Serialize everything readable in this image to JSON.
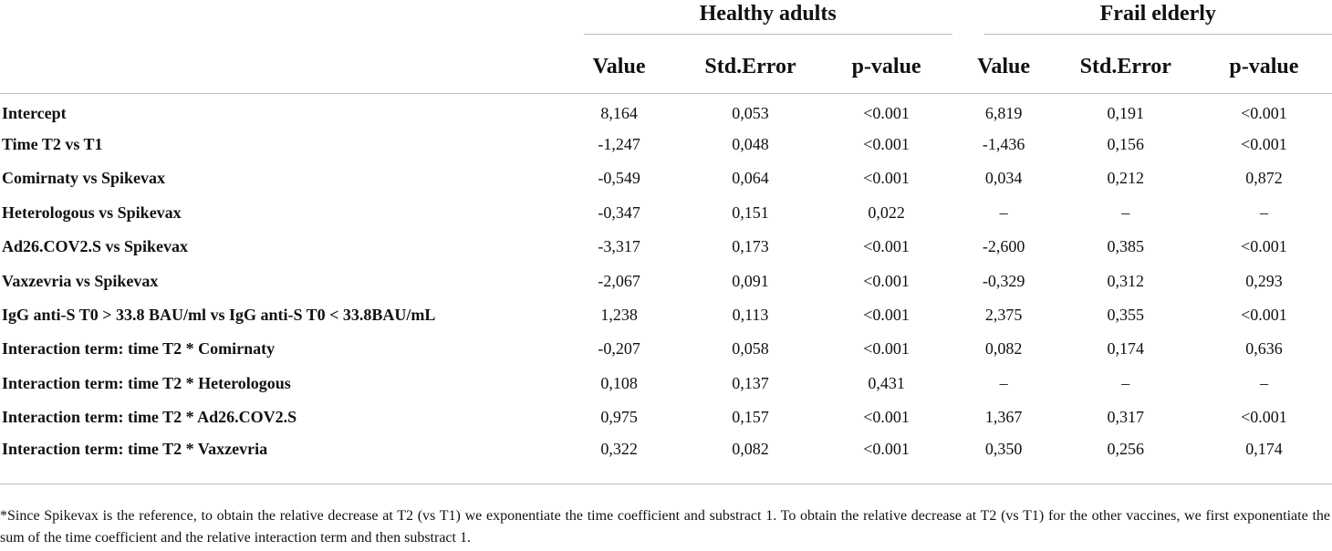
{
  "table": {
    "group_headers": [
      "Healthy adults",
      "Frail elderly"
    ],
    "column_headers": [
      "Value",
      "Std.Error",
      "p-value",
      "Value",
      "Std.Error",
      "p-value"
    ],
    "rows": [
      {
        "label": "Intercept",
        "values": [
          "8,164",
          "0,053",
          "<0.001",
          "6,819",
          "0,191",
          "<0.001"
        ]
      },
      {
        "label": "Time T2 vs T1",
        "values": [
          "-1,247",
          "0,048",
          "<0.001",
          "-1,436",
          "0,156",
          "<0.001"
        ]
      },
      {
        "label": "Comirnaty vs Spikevax",
        "values": [
          "-0,549",
          "0,064",
          "<0.001",
          "0,034",
          "0,212",
          "0,872"
        ]
      },
      {
        "label": "Heterologous vs Spikevax",
        "values": [
          "-0,347",
          "0,151",
          "0,022",
          "–",
          "–",
          "–"
        ]
      },
      {
        "label": "Ad26.COV2.S vs Spikevax",
        "values": [
          "-3,317",
          "0,173",
          "<0.001",
          "-2,600",
          "0,385",
          "<0.001"
        ]
      },
      {
        "label": "Vaxzevria vs Spikevax",
        "values": [
          "-2,067",
          "0,091",
          "<0.001",
          "-0,329",
          "0,312",
          "0,293"
        ]
      },
      {
        "label": "IgG anti-S T0 > 33.8 BAU/ml vs IgG anti-S T0 < 33.8BAU/mL",
        "values": [
          "1,238",
          "0,113",
          "<0.001",
          "2,375",
          "0,355",
          "<0.001"
        ]
      },
      {
        "label": "Interaction term: time T2 * Comirnaty",
        "values": [
          "-0,207",
          "0,058",
          "<0.001",
          "0,082",
          "0,174",
          "0,636"
        ]
      },
      {
        "label": "Interaction term: time T2 * Heterologous",
        "values": [
          "0,108",
          "0,137",
          "0,431",
          "–",
          "–",
          "–"
        ]
      },
      {
        "label": "Interaction term: time T2 * Ad26.COV2.S",
        "values": [
          "0,975",
          "0,157",
          "<0.001",
          "1,367",
          "0,317",
          "<0.001"
        ]
      },
      {
        "label": "Interaction term: time T2 * Vaxzevria",
        "values": [
          "0,322",
          "0,082",
          "<0.001",
          "0,350",
          "0,256",
          "0,174"
        ]
      }
    ]
  },
  "footnote": "*Since Spikevax is the reference, to obtain the relative decrease at T2 (vs T1) we exponentiate the time coefficient and substract 1. To obtain the relative decrease at T2 (vs T1) for the other vaccines, we first exponentiate the sum of the time coefficient and the relative interaction term and then substract 1."
}
